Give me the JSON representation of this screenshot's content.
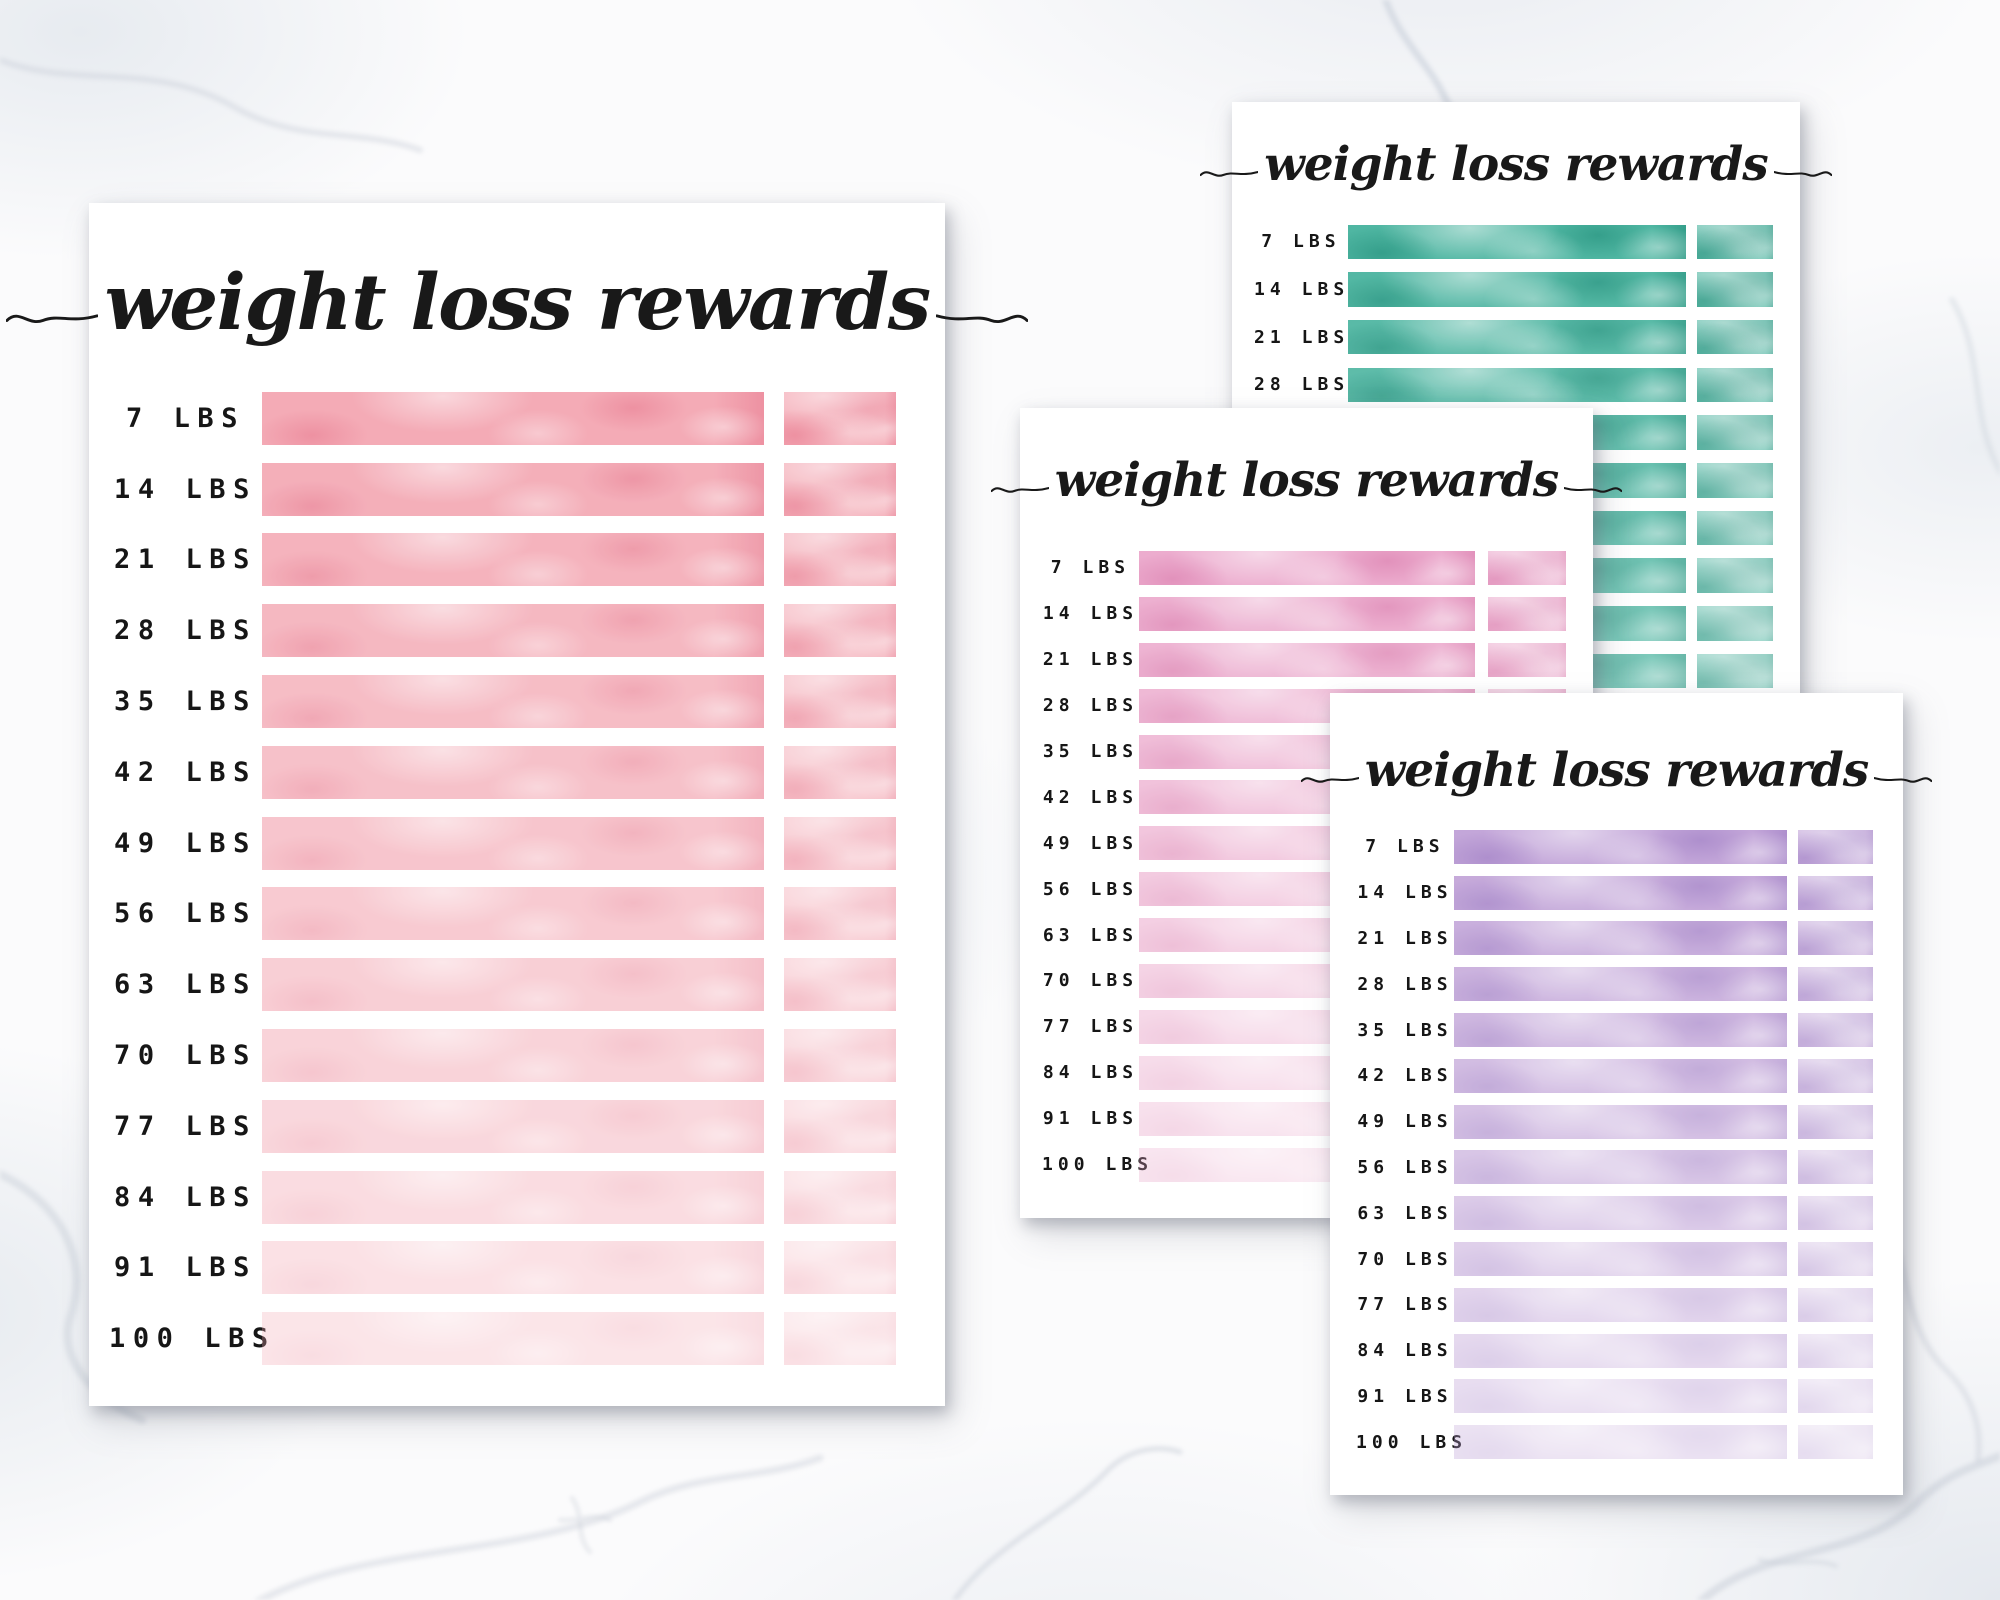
{
  "title": "weight loss rewards",
  "milestones": [
    "7 LBS",
    "14 LBS",
    "21 LBS",
    "28 LBS",
    "35 LBS",
    "42 LBS",
    "49 LBS",
    "56 LBS",
    "63 LBS",
    "70 LBS",
    "77 LBS",
    "84 LBS",
    "91 LBS",
    "100 LBS"
  ],
  "sheets": [
    {
      "name": "coral",
      "accent": "#f4abb6",
      "accent_dark": "rgba(233,128,148,0.60)",
      "fade_to": 0.3
    },
    {
      "name": "teal",
      "accent": "#4fb6a2",
      "accent_dark": "rgba(32,140,120,0.55)",
      "fade_to": 0.62
    },
    {
      "name": "magenta",
      "accent": "#ecacce",
      "accent_dark": "rgba(219,128,175,0.60)",
      "fade_to": 0.3
    },
    {
      "name": "purple",
      "accent": "#c3a6d9",
      "accent_dark": "rgba(160,128,197,0.60)",
      "fade_to": 0.32
    }
  ],
  "background": {
    "surface": "white-marble",
    "vein_color": "#c7ced8",
    "shadow_color": "rgba(110,115,128,0.42)"
  }
}
